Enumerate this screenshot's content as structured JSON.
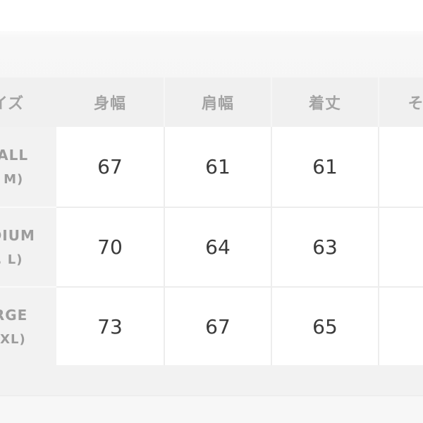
{
  "size_chart": {
    "columns": [
      {
        "key": "size",
        "label": "サイズ"
      },
      {
        "key": "body_width",
        "label": "身幅"
      },
      {
        "key": "shoulder_width",
        "label": "肩幅"
      },
      {
        "key": "length",
        "label": "着丈"
      },
      {
        "key": "sleeve_length",
        "label": "そで丈"
      }
    ],
    "rows": [
      {
        "size_name": "SMALL",
        "size_code": "(S, M)",
        "body_width": "67",
        "shoulder_width": "61",
        "length": "61",
        "sleeve_length": ""
      },
      {
        "size_name": "MEDIUM",
        "size_code": "(M, L)",
        "body_width": "70",
        "shoulder_width": "64",
        "length": "63",
        "sleeve_length": ""
      },
      {
        "size_name": "LARGE",
        "size_code": "(L, XL)",
        "body_width": "73",
        "shoulder_width": "67",
        "length": "65",
        "sleeve_length": ""
      }
    ]
  },
  "colors": {
    "page_background": "#ffffff",
    "section_background": "#f6f6f6",
    "header_cell_background": "#f0f0f0",
    "label_cell_background": "#f2f2f2",
    "data_cell_background": "#ffffff",
    "cell_border": "#ededed",
    "header_text": "#a3a3a3",
    "label_text": "#9c9c9c",
    "value_text": "#3a3a3a"
  }
}
